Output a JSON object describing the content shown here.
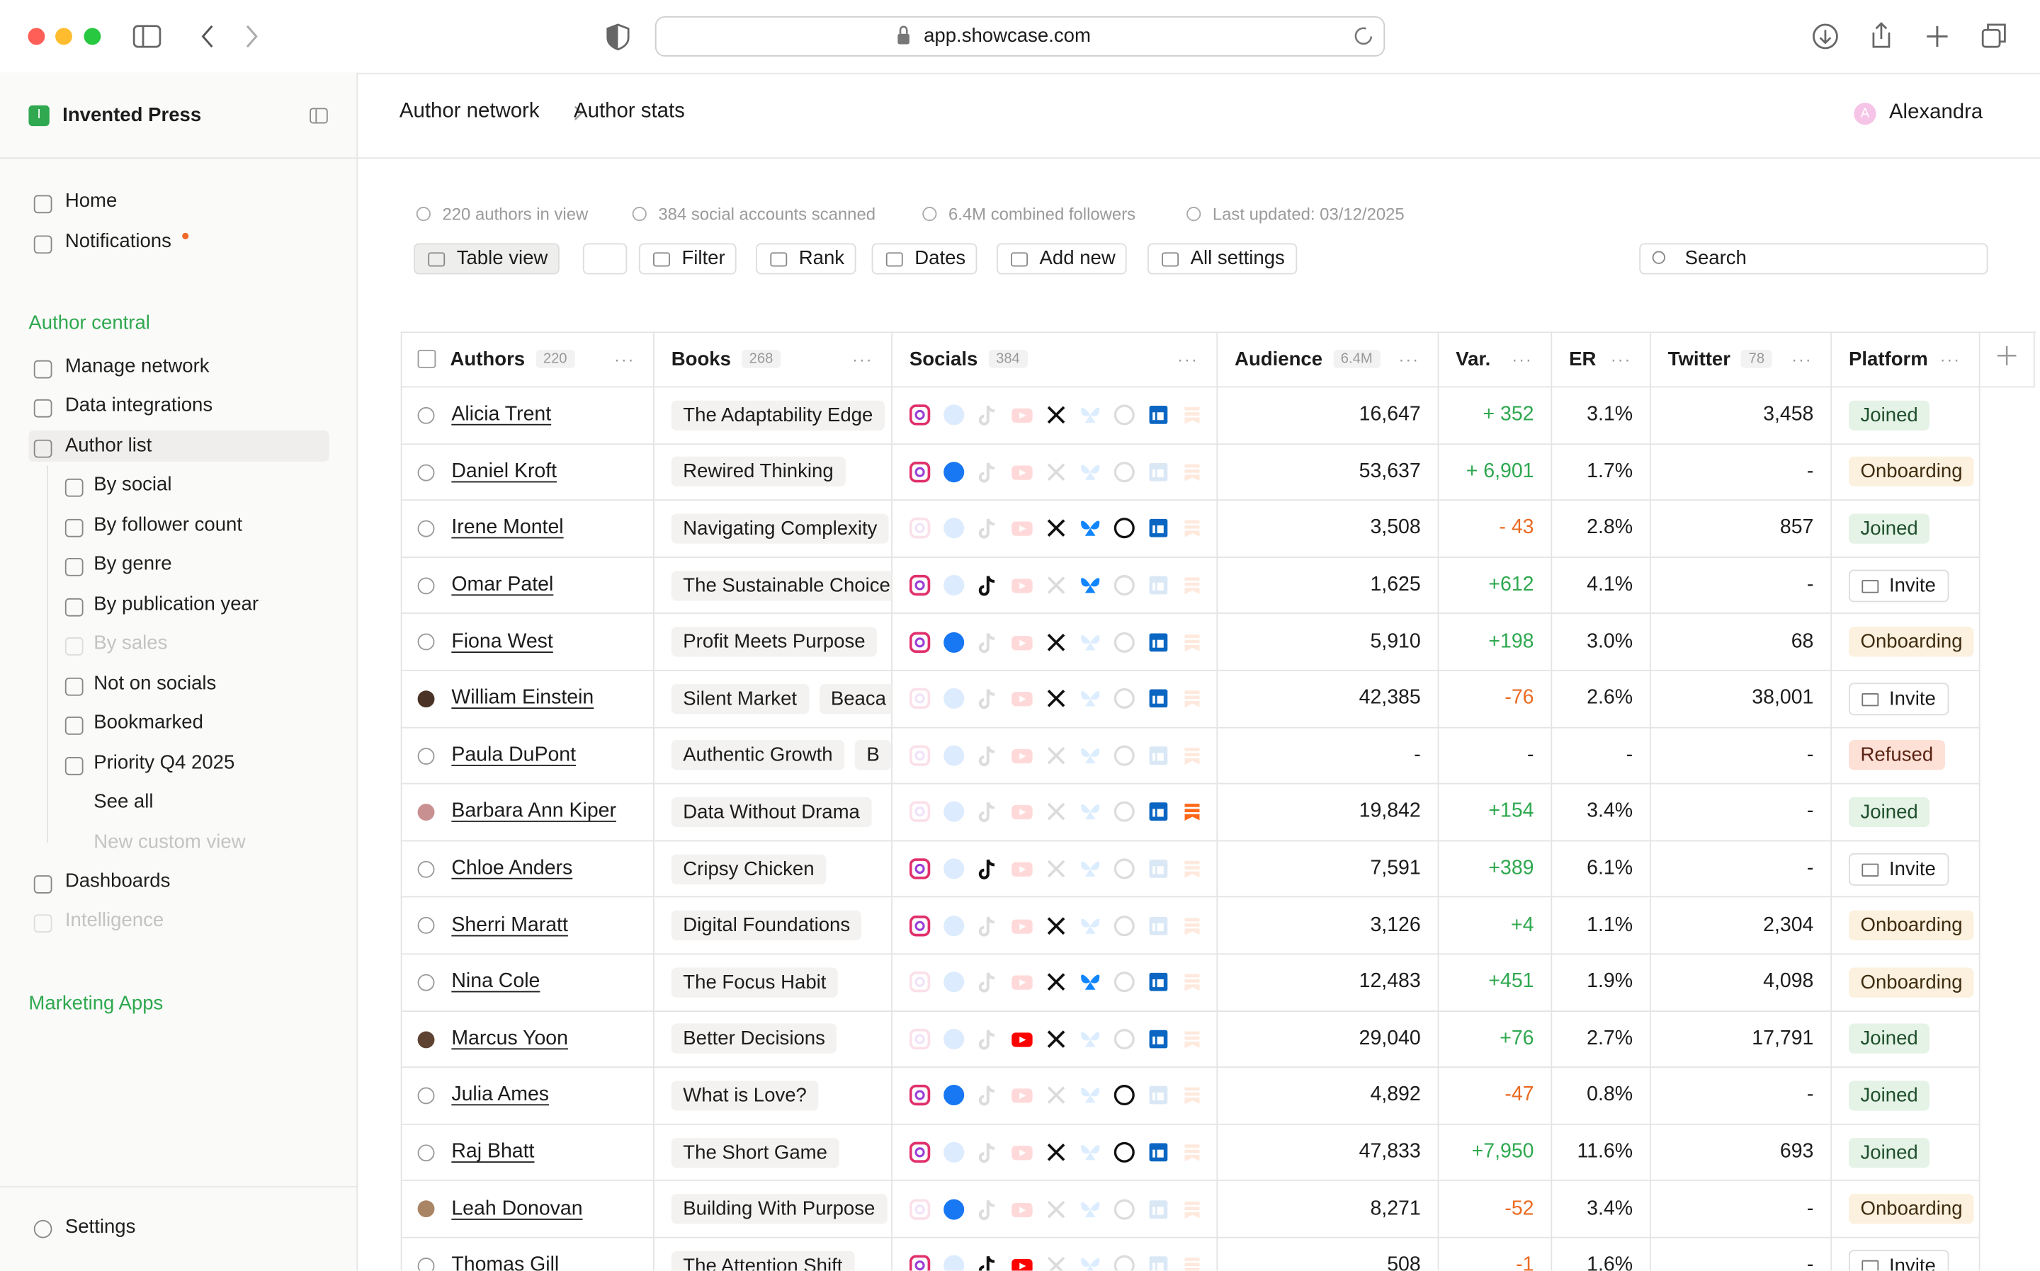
{
  "browser": {
    "url": "app.showcase.com"
  },
  "sidebar": {
    "brand_initial": "I",
    "brand": "Invented Press",
    "nav": [
      "Home",
      "Notifications"
    ],
    "section": "Author central",
    "items": [
      "Manage network",
      "Data integrations",
      "Author list"
    ],
    "sub_items": [
      "By social",
      "By follower count",
      "By genre",
      "By publication year",
      "By sales",
      "Not on socials",
      "Bookmarked",
      "Priority Q4 2025",
      "See all",
      "New custom view"
    ],
    "after": [
      "Dashboards",
      "Intelligence"
    ],
    "section2": "Marketing Apps",
    "settings": "Settings"
  },
  "header": {
    "breadcrumb": [
      "Author network",
      "Author stats"
    ],
    "user_initial": "A",
    "user": "Alexandra"
  },
  "stats": [
    "220 authors in view",
    "384 social accounts scanned",
    "6.4M combined followers",
    "Last updated: 03/12/2025"
  ],
  "toolbar": [
    "Table view",
    "Filter",
    "Rank",
    "Dates",
    "Add new",
    "All settings"
  ],
  "search": "Search",
  "table": {
    "columns": [
      {
        "label": "Authors",
        "count": "220"
      },
      {
        "label": "Books",
        "count": "268"
      },
      {
        "label": "Socials",
        "count": "384"
      },
      {
        "label": "Audience",
        "count": "6.4M"
      },
      {
        "label": "Var."
      },
      {
        "label": "ER"
      },
      {
        "label": "Twitter",
        "count": "78"
      },
      {
        "label": "Platform"
      }
    ],
    "rows": [
      {
        "author": "Alicia Trent",
        "books": [
          "The Adaptability Edge"
        ],
        "audience": "16,647",
        "var": "+ 352",
        "er": "3.1%",
        "twitter": "3,458",
        "platform": "Joined"
      },
      {
        "author": "Daniel Kroft",
        "books": [
          "Rewired Thinking"
        ],
        "audience": "53,637",
        "var": "+ 6,901",
        "er": "1.7%",
        "twitter": "-",
        "platform": "Onboarding"
      },
      {
        "author": "Irene Montel",
        "books": [
          "Navigating Complexity"
        ],
        "audience": "3,508",
        "var": "- 43",
        "er": "2.8%",
        "twitter": "857",
        "platform": "Joined"
      },
      {
        "author": "Omar Patel",
        "books": [
          "The Sustainable Choice"
        ],
        "audience": "1,625",
        "var": "+612",
        "er": "4.1%",
        "twitter": "-",
        "platform": "Invite"
      },
      {
        "author": "Fiona West",
        "books": [
          "Profit Meets Purpose"
        ],
        "audience": "5,910",
        "var": "+198",
        "er": "3.0%",
        "twitter": "68",
        "platform": "Onboarding"
      },
      {
        "author": "William Einstein",
        "books": [
          "Silent Market",
          "Beaca"
        ],
        "audience": "42,385",
        "var": "-76",
        "er": "2.6%",
        "twitter": "38,001",
        "platform": "Invite"
      },
      {
        "author": "Paula DuPont",
        "books": [
          "Authentic Growth",
          "B"
        ],
        "audience": "-",
        "var": "-",
        "er": "-",
        "twitter": "-",
        "platform": "Refused"
      },
      {
        "author": "Barbara Ann Kiper",
        "books": [
          "Data Without Drama"
        ],
        "audience": "19,842",
        "var": "+154",
        "er": "3.4%",
        "twitter": "-",
        "platform": "Joined"
      },
      {
        "author": "Chloe Anders",
        "books": [
          "Cripsy Chicken"
        ],
        "audience": "7,591",
        "var": "+389",
        "er": "6.1%",
        "twitter": "-",
        "platform": "Invite"
      },
      {
        "author": "Sherri Maratt",
        "books": [
          "Digital Foundations"
        ],
        "audience": "3,126",
        "var": "+4",
        "er": "1.1%",
        "twitter": "2,304",
        "platform": "Onboarding"
      },
      {
        "author": "Nina Cole",
        "books": [
          "The Focus Habit"
        ],
        "audience": "12,483",
        "var": "+451",
        "er": "1.9%",
        "twitter": "4,098",
        "platform": "Onboarding"
      },
      {
        "author": "Marcus Yoon",
        "books": [
          "Better Decisions"
        ],
        "audience": "29,040",
        "var": "+76",
        "er": "2.7%",
        "twitter": "17,791",
        "platform": "Joined"
      },
      {
        "author": "Julia Ames",
        "books": [
          "What is Love?"
        ],
        "audience": "4,892",
        "var": "-47",
        "er": "0.8%",
        "twitter": "-",
        "platform": "Joined"
      },
      {
        "author": "Raj Bhatt",
        "books": [
          "The Short Game"
        ],
        "audience": "47,833",
        "var": "+7,950",
        "er": "11.6%",
        "twitter": "693",
        "platform": "Joined"
      },
      {
        "author": "Leah Donovan",
        "books": [
          "Building With Purpose"
        ],
        "audience": "8,271",
        "var": "-52",
        "er": "3.4%",
        "twitter": "-",
        "platform": "Onboarding"
      },
      {
        "author": "Thomas Gill",
        "books": [
          "The Attention Shift"
        ],
        "audience": "508",
        "var": "-1",
        "er": "1.6%",
        "twitter": "-",
        "platform": "Invite"
      }
    ]
  }
}
